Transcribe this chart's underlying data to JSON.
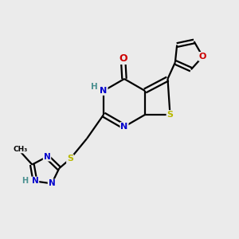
{
  "background_color": "#ebebeb",
  "bond_color": "#000000",
  "atom_colors": {
    "N": "#0000cc",
    "O": "#cc0000",
    "S": "#b8b800",
    "C": "#000000",
    "H": "#4a9090"
  }
}
